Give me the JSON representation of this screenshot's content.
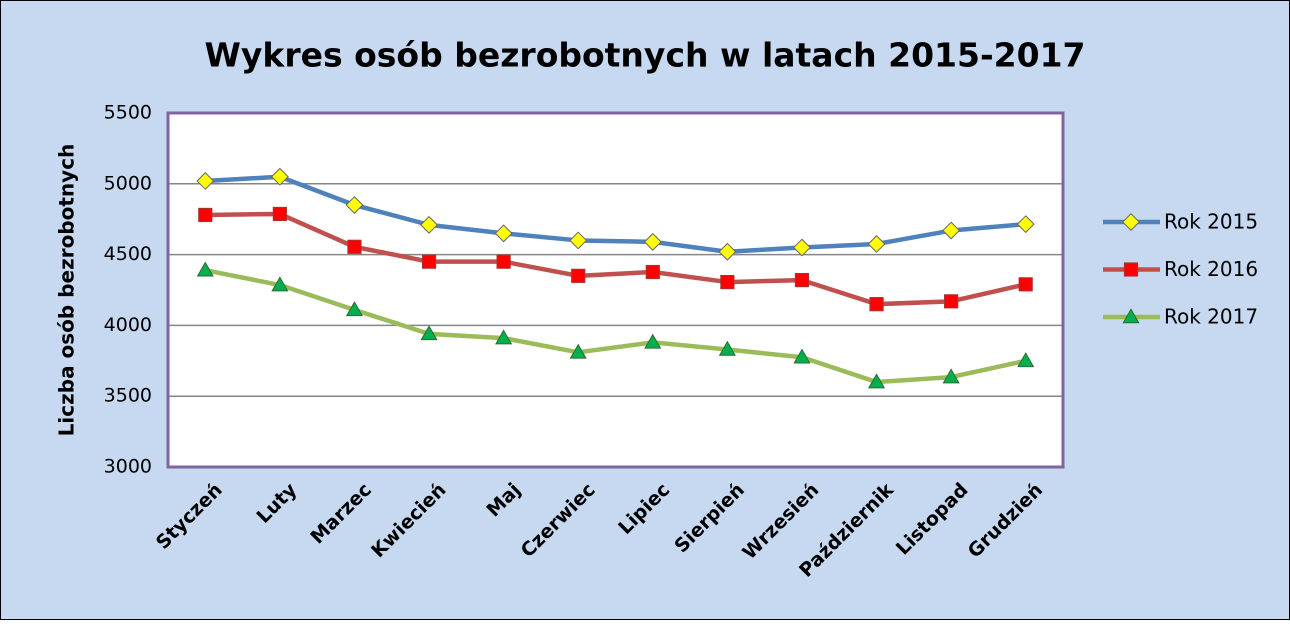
{
  "chart_data": {
    "type": "line",
    "title": "Wykres osób bezrobotnych w latach 2015-2017",
    "y_label": "Liczba osób bezrobotnych",
    "categories": [
      "Styczeń",
      "Luty",
      "Marzec",
      "Kwiecień",
      "Maj",
      "Czerwiec",
      "Lipiec",
      "Sierpień",
      "Wrzesień",
      "Październik",
      "Listopad",
      "Grudzień"
    ],
    "series": [
      {
        "name": "Rok 2015",
        "color": "#4f81bd",
        "marker": "diamond",
        "marker_color": "#ffff00",
        "values": [
          5020,
          5050,
          4850,
          4710,
          4650,
          4600,
          4590,
          4520,
          4550,
          4575,
          4670,
          4715
        ]
      },
      {
        "name": "Rok 2016",
        "color": "#c0504d",
        "marker": "square",
        "marker_color": "#ff0000",
        "values": [
          4780,
          4787,
          4555,
          4450,
          4450,
          4350,
          4377,
          4306,
          4320,
          4150,
          4170,
          4290
        ]
      },
      {
        "name": "Rok 2017",
        "color": "#9bbb59",
        "marker": "triangle",
        "marker_color": "#00b050",
        "values": [
          4390,
          4285,
          4110,
          3940,
          3910,
          3810,
          3880,
          3830,
          3775,
          3600,
          3635,
          3750
        ]
      }
    ],
    "ylim": [
      3000,
      5500
    ],
    "yticks": [
      3000,
      3500,
      4000,
      4500,
      5000,
      5500
    ],
    "grid": true,
    "legend": "right"
  }
}
